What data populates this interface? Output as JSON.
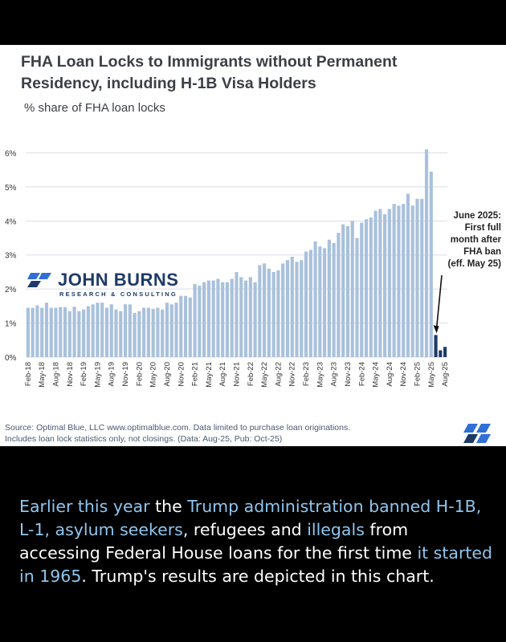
{
  "chart_data": {
    "type": "bar",
    "title_line1": "FHA Loan Locks to Immigrants without Permanent",
    "title_line2": "Residency, including H-1B Visa Holders",
    "subtitle": "% share of FHA loan locks",
    "ylabel": "% share of FHA loan locks",
    "ylim": [
      0,
      6.2
    ],
    "yticks": [
      "0%",
      "1%",
      "2%",
      "3%",
      "4%",
      "5%",
      "6%"
    ],
    "grid": true,
    "bar_color": "#a9c1dc",
    "highlight_color": "#1f3a68",
    "categories": [
      "Feb-18",
      "Mar-18",
      "Apr-18",
      "May-18",
      "Jun-18",
      "Jul-18",
      "Aug-18",
      "Sep-18",
      "Oct-18",
      "Nov-18",
      "Dec-18",
      "Jan-19",
      "Feb-19",
      "Mar-19",
      "Apr-19",
      "May-19",
      "Jun-19",
      "Jul-19",
      "Aug-19",
      "Sep-19",
      "Oct-19",
      "Nov-19",
      "Dec-19",
      "Jan-20",
      "Feb-20",
      "Mar-20",
      "Apr-20",
      "May-20",
      "Jun-20",
      "Jul-20",
      "Aug-20",
      "Sep-20",
      "Oct-20",
      "Nov-20",
      "Dec-20",
      "Jan-21",
      "Feb-21",
      "Mar-21",
      "Apr-21",
      "May-21",
      "Jun-21",
      "Jul-21",
      "Aug-21",
      "Sep-21",
      "Oct-21",
      "Nov-21",
      "Dec-21",
      "Jan-22",
      "Feb-22",
      "Mar-22",
      "Apr-22",
      "May-22",
      "Jun-22",
      "Jul-22",
      "Aug-22",
      "Sep-22",
      "Oct-22",
      "Nov-22",
      "Dec-22",
      "Jan-23",
      "Feb-23",
      "Mar-23",
      "Apr-23",
      "May-23",
      "Jun-23",
      "Jul-23",
      "Aug-23",
      "Sep-23",
      "Oct-23",
      "Nov-23",
      "Dec-23",
      "Jan-24",
      "Feb-24",
      "Mar-24",
      "Apr-24",
      "May-24",
      "Jun-24",
      "Jul-24",
      "Aug-24",
      "Sep-24",
      "Oct-24",
      "Nov-24",
      "Dec-24",
      "Jan-25",
      "Feb-25",
      "Mar-25",
      "Apr-25",
      "May-25",
      "Jun-25",
      "Jul-25",
      "Aug-25"
    ],
    "tick_labels": [
      "Feb-18",
      "May-18",
      "Aug-18",
      "Nov-18",
      "Feb-19",
      "May-19",
      "Aug-19",
      "Nov-19",
      "Feb-20",
      "May-20",
      "Aug-20",
      "Nov-20",
      "Feb-21",
      "May-21",
      "Aug-21",
      "Nov-21",
      "Feb-22",
      "May-22",
      "Aug-22",
      "Nov-22",
      "Feb-23",
      "May-23",
      "Aug-23",
      "Nov-23",
      "Feb-24",
      "May-24",
      "Aug-24",
      "Nov-24",
      "Feb-25",
      "May-25",
      "Aug-25"
    ],
    "values": [
      1.45,
      1.45,
      1.52,
      1.45,
      1.6,
      1.45,
      1.45,
      1.47,
      1.47,
      1.35,
      1.48,
      1.35,
      1.4,
      1.5,
      1.55,
      1.6,
      1.6,
      1.45,
      1.55,
      1.4,
      1.35,
      1.55,
      1.55,
      1.3,
      1.35,
      1.45,
      1.45,
      1.42,
      1.45,
      1.4,
      1.6,
      1.55,
      1.6,
      1.8,
      1.8,
      1.75,
      2.15,
      2.1,
      2.2,
      2.25,
      2.25,
      2.3,
      2.2,
      2.2,
      2.3,
      2.5,
      2.35,
      2.25,
      2.35,
      2.2,
      2.7,
      2.75,
      2.6,
      2.5,
      2.55,
      2.75,
      2.85,
      2.95,
      2.8,
      2.85,
      3.1,
      3.15,
      3.4,
      3.25,
      3.2,
      3.45,
      3.35,
      3.65,
      3.9,
      3.85,
      4.0,
      3.5,
      3.95,
      4.05,
      4.1,
      4.3,
      4.35,
      4.2,
      4.35,
      4.5,
      4.45,
      4.5,
      4.8,
      4.45,
      4.65,
      4.65,
      6.1,
      5.45,
      0.65,
      0.2,
      0.3
    ],
    "highlight_from_index": 88,
    "annotation": [
      "June 2025:",
      "First full",
      "month after",
      "FHA ban",
      "(eff. May 25)"
    ]
  },
  "logo": {
    "name": "JOHN BURNS",
    "tagline": "RESEARCH & CONSULTING"
  },
  "source": {
    "line1": "Source: Optimal Blue, LLC www.optimalblue.com. Data limited to purchase loan originations.",
    "line2": "Includes loan lock statistics only, not closings. (Data: Aug-25, Pub: Oct-25)"
  },
  "caption": {
    "p1": "Earlier this year",
    "p2": " the ",
    "p3": "Trump administration banned H-1B, L-1, asylum seekers",
    "p4": ", refugees and ",
    "p5": "illegals",
    "p6": " from accessing Federal House loans for the first time ",
    "p7": "it started in 1965",
    "p8": ". Trump's results are depicted in this chart."
  },
  "colors": {
    "background": "#000000",
    "card": "#ffffff",
    "caption_highlight": "#8fc6ef",
    "brand_navy": "#1f3a68"
  }
}
